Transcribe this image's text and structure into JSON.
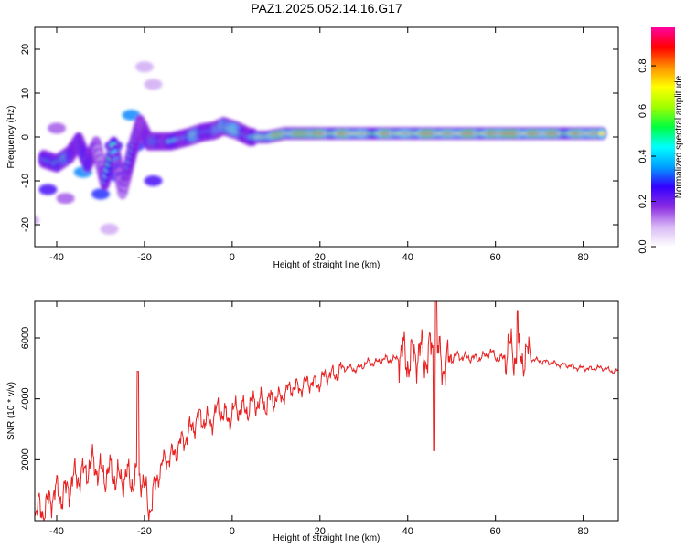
{
  "figure": {
    "title": "PAZ1.2025.052.14.16.G17"
  },
  "chart_data": [
    {
      "type": "heatmap",
      "xlabel": "Height of straight line (km)",
      "ylabel": "Frequency (Hz)",
      "xlim": [
        -45,
        88
      ],
      "ylim": [
        -25,
        25
      ],
      "xticks": [
        -40,
        -20,
        0,
        20,
        40,
        60,
        80
      ],
      "yticks": [
        -20,
        -10,
        0,
        10,
        20
      ],
      "colorbar": {
        "label": "Normalized spectral amplitude",
        "range": [
          0,
          0.97
        ],
        "ticks": [
          "0.0",
          "0.2",
          "0.4",
          "0.6",
          "0.8"
        ],
        "colormap": [
          "#ffffff",
          "#d8b8f5",
          "#8a2be2",
          "#3300ff",
          "#00a0ff",
          "#00ffff",
          "#00ff40",
          "#a0ff00",
          "#ffff00",
          "#ff9000",
          "#ff0000",
          "#ff00a0"
        ]
      },
      "ridge": [
        {
          "x": -43,
          "f": -5,
          "a": 0.3
        },
        {
          "x": -40,
          "f": -6,
          "a": 0.75
        },
        {
          "x": -37,
          "f": -4,
          "a": 0.4
        },
        {
          "x": -35,
          "f": -1,
          "a": 0.45
        },
        {
          "x": -33,
          "f": -6,
          "a": 0.45
        },
        {
          "x": -31,
          "f": -2,
          "a": 0.4
        },
        {
          "x": -29,
          "f": -10,
          "a": 0.35
        },
        {
          "x": -27,
          "f": -2,
          "a": 0.35
        },
        {
          "x": -25,
          "f": -12,
          "a": 0.3
        },
        {
          "x": -23,
          "f": -4,
          "a": 0.35
        },
        {
          "x": -21,
          "f": 3,
          "a": 0.45
        },
        {
          "x": -19,
          "f": -1,
          "a": 0.35
        },
        {
          "x": -17,
          "f": -1,
          "a": 0.5
        },
        {
          "x": -14,
          "f": -1,
          "a": 0.45
        },
        {
          "x": -10,
          "f": 0,
          "a": 0.45
        },
        {
          "x": -7,
          "f": 1,
          "a": 0.6
        },
        {
          "x": -4,
          "f": 1.5,
          "a": 0.55
        },
        {
          "x": -2,
          "f": 2.5,
          "a": 0.75
        },
        {
          "x": 1,
          "f": 1.5,
          "a": 0.6
        },
        {
          "x": 4,
          "f": 0,
          "a": 0.55
        },
        {
          "x": 8,
          "f": 0,
          "a": 0.7
        },
        {
          "x": 12,
          "f": 0.8,
          "a": 0.9
        },
        {
          "x": 16,
          "f": 0.8,
          "a": 0.95
        },
        {
          "x": 20,
          "f": 0.8,
          "a": 0.85
        },
        {
          "x": 25,
          "f": 0.8,
          "a": 0.8
        },
        {
          "x": 30,
          "f": 0.8,
          "a": 0.75
        },
        {
          "x": 35,
          "f": 0.8,
          "a": 0.75
        },
        {
          "x": 40,
          "f": 0.8,
          "a": 0.8
        },
        {
          "x": 45,
          "f": 0.8,
          "a": 0.85
        },
        {
          "x": 50,
          "f": 0.8,
          "a": 0.85
        },
        {
          "x": 55,
          "f": 0.8,
          "a": 0.8
        },
        {
          "x": 60,
          "f": 0.8,
          "a": 0.9
        },
        {
          "x": 65,
          "f": 0.8,
          "a": 0.95
        },
        {
          "x": 70,
          "f": 0.8,
          "a": 0.85
        },
        {
          "x": 75,
          "f": 0.8,
          "a": 0.8
        },
        {
          "x": 80,
          "f": 0.8,
          "a": 0.8
        },
        {
          "x": 85,
          "f": 0.8,
          "a": 0.75
        }
      ],
      "blobs": [
        {
          "x": -42,
          "f": -12,
          "a": 0.25
        },
        {
          "x": -38,
          "f": -14,
          "a": 0.15
        },
        {
          "x": -34,
          "f": -8,
          "a": 0.35
        },
        {
          "x": -30,
          "f": -13,
          "a": 0.3
        },
        {
          "x": -26,
          "f": -9,
          "a": 0.3
        },
        {
          "x": -23,
          "f": 5,
          "a": 0.35
        },
        {
          "x": -22,
          "f": -2,
          "a": 0.3
        },
        {
          "x": -18,
          "f": -10,
          "a": 0.25
        },
        {
          "x": -40,
          "f": 2,
          "a": 0.15
        },
        {
          "x": -28,
          "f": -21,
          "a": 0.1
        },
        {
          "x": -46,
          "f": -19,
          "a": 0.1
        },
        {
          "x": -18,
          "f": 12,
          "a": 0.1
        },
        {
          "x": -20,
          "f": 16,
          "a": 0.1
        },
        {
          "x": -27,
          "f": -2,
          "a": 0.25
        }
      ]
    },
    {
      "type": "line",
      "xlabel": "Height of straight line (km)",
      "ylabel": "SNR (10 * v/v)",
      "xlim": [
        -45,
        88
      ],
      "ylim": [
        0,
        7200
      ],
      "xticks": [
        -40,
        -20,
        0,
        20,
        40,
        60,
        80
      ],
      "yticks": [
        2000,
        4000,
        6000
      ],
      "color": "#e82020",
      "series": [
        {
          "x": [
            -45,
            -43,
            -41,
            -39,
            -37,
            -35,
            -33,
            -31,
            -29,
            -27,
            -25,
            -23,
            -21,
            -20,
            -19,
            -17,
            -15,
            -13,
            -11,
            -9,
            -7,
            -5,
            -3,
            -1,
            1,
            3,
            5,
            7,
            9,
            11,
            13,
            15,
            17,
            19,
            21,
            23,
            25,
            27,
            29,
            31,
            33,
            35,
            37,
            39,
            41,
            43,
            45,
            46,
            47,
            49,
            51,
            53,
            55,
            57,
            59,
            61,
            63,
            65,
            67,
            69,
            71,
            73,
            75,
            77,
            79,
            81,
            83,
            85,
            87
          ],
          "y": [
            200,
            400,
            800,
            900,
            1100,
            1500,
            1700,
            1800,
            1500,
            1500,
            1400,
            1300,
            1600,
            1000,
            300,
            1500,
            2000,
            2300,
            2600,
            3200,
            3300,
            3300,
            3600,
            3400,
            3600,
            3700,
            3800,
            3900,
            3900,
            4100,
            4300,
            4400,
            4500,
            4500,
            4700,
            4800,
            5000,
            5000,
            5000,
            5200,
            5200,
            5300,
            5300,
            5400,
            5400,
            5400,
            5600,
            5600,
            5300,
            5200,
            5400,
            5400,
            5300,
            5400,
            5500,
            5300,
            5500,
            5500,
            5300,
            5300,
            5200,
            5200,
            5100,
            5100,
            5000,
            5000,
            5000,
            5000,
            4900
          ]
        }
      ]
    }
  ]
}
